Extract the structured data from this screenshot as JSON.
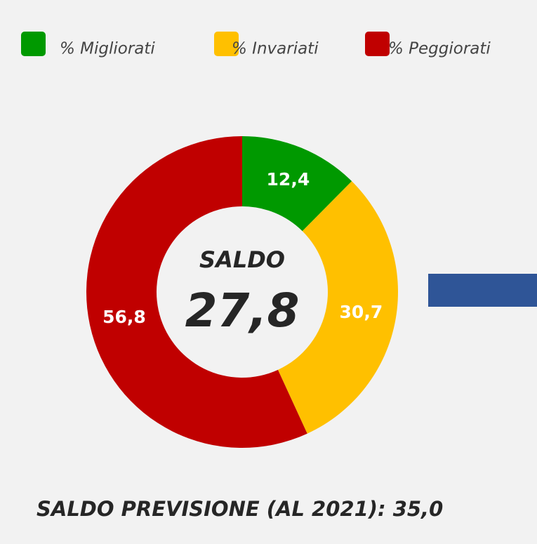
{
  "chart_data": {
    "type": "donut",
    "categories": [
      "% Migliorati",
      "% Invariati",
      "% Peggiorati"
    ],
    "values": [
      12.4,
      30.7,
      56.8
    ],
    "value_labels": [
      "12,4",
      "30,7",
      "56,8"
    ],
    "colors": [
      "#009900",
      "#ffc000",
      "#c00000"
    ],
    "center_title": "SALDO",
    "center_value": "27,8",
    "footnote": "SALDO PREVISIONE (AL 2021): 35,0",
    "legend": "top"
  }
}
